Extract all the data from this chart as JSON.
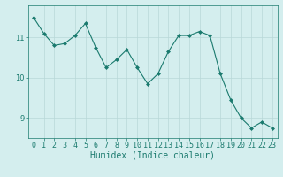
{
  "x": [
    0,
    1,
    2,
    3,
    4,
    5,
    6,
    7,
    8,
    9,
    10,
    11,
    12,
    13,
    14,
    15,
    16,
    17,
    18,
    19,
    20,
    21,
    22,
    23
  ],
  "y": [
    11.5,
    11.1,
    10.8,
    10.85,
    11.05,
    11.35,
    10.75,
    10.25,
    10.45,
    10.7,
    10.25,
    9.85,
    10.1,
    10.65,
    11.05,
    11.05,
    11.15,
    11.05,
    10.1,
    9.45,
    9.0,
    8.75,
    8.9,
    8.75
  ],
  "line_color": "#1a7a6e",
  "marker": "D",
  "marker_size": 2,
  "bg_color": "#d4eeee",
  "grid_color": "#b8d8d8",
  "xlabel": "Humidex (Indice chaleur)",
  "xlabel_fontsize": 7,
  "tick_fontsize": 6,
  "yticks": [
    9,
    10,
    11
  ],
  "ylim": [
    8.5,
    11.8
  ],
  "xlim": [
    -0.5,
    23.5
  ]
}
